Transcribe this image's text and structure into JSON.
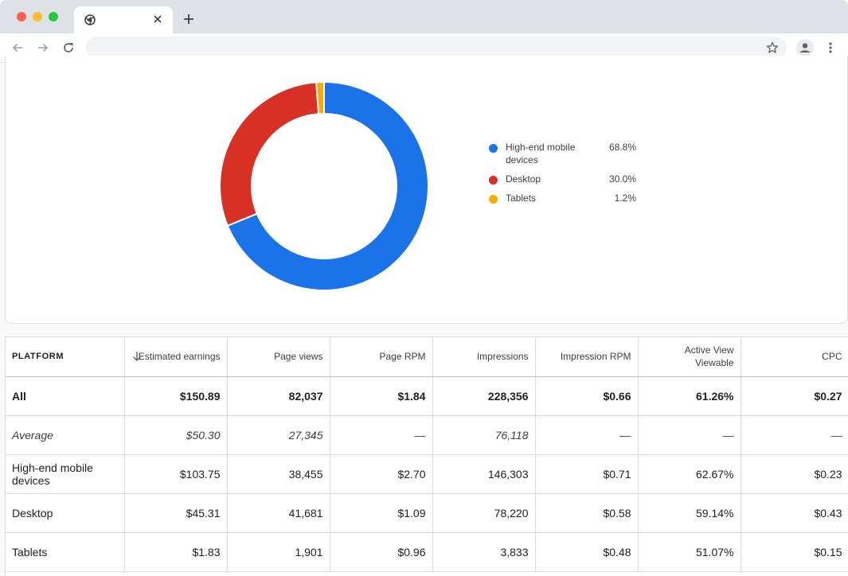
{
  "browser": {
    "tab_title": "",
    "address": ""
  },
  "colors": {
    "high_end_mobile": "#1a73e8",
    "desktop": "#d93025",
    "tablets": "#f9ab00"
  },
  "chart_data": {
    "type": "pie",
    "categories": [
      "High-end mobile devices",
      "Desktop",
      "Tablets"
    ],
    "values": [
      68.8,
      30.0,
      1.2
    ],
    "value_labels": [
      "68.8%",
      "30.0%",
      "1.2%"
    ],
    "legend_position": "right"
  },
  "table": {
    "headers": {
      "platform": "PLATFORM",
      "estimated_earnings": "Estimated earnings",
      "page_views": "Page views",
      "page_rpm": "Page RPM",
      "impressions": "Impressions",
      "impression_rpm": "Impression RPM",
      "active_view": "Active View Viewable",
      "cpc": "CPC"
    },
    "rows": [
      {
        "platform": "All",
        "earnings": "$150.89",
        "page_views": "82,037",
        "page_rpm": "$1.84",
        "impressions": "228,356",
        "impression_rpm": "$0.66",
        "active_view": "61.26%",
        "cpc": "$0.27"
      },
      {
        "platform": "Average",
        "earnings": "$50.30",
        "page_views": "27,345",
        "page_rpm": "—",
        "impressions": "76,118",
        "impression_rpm": "—",
        "active_view": "—",
        "cpc": "—"
      },
      {
        "platform": "High-end mobile devices",
        "earnings": "$103.75",
        "page_views": "38,455",
        "page_rpm": "$2.70",
        "impressions": "146,303",
        "impression_rpm": "$0.71",
        "active_view": "62.67%",
        "cpc": "$0.23"
      },
      {
        "platform": "Desktop",
        "earnings": "$45.31",
        "page_views": "41,681",
        "page_rpm": "$1.09",
        "impressions": "78,220",
        "impression_rpm": "$0.58",
        "active_view": "59.14%",
        "cpc": "$0.43"
      },
      {
        "platform": "Tablets",
        "earnings": "$1.83",
        "page_views": "1,901",
        "page_rpm": "$0.96",
        "impressions": "3,833",
        "impression_rpm": "$0.48",
        "active_view": "51.07%",
        "cpc": "$0.15"
      }
    ]
  }
}
